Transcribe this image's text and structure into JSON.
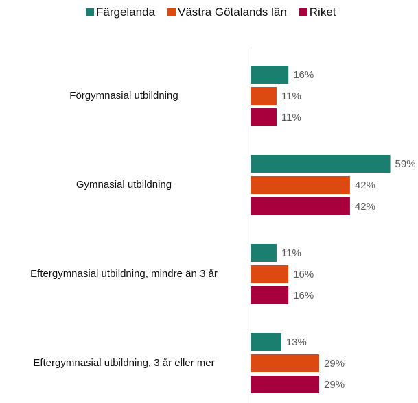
{
  "chart_data": {
    "type": "hbar",
    "categories": [
      "Förgymnasial utbildning",
      "Gymnasial utbildning",
      "Eftergymnasial utbildning, mindre än 3 år",
      "Eftergymnasial utbildning, 3 år eller mer"
    ],
    "series": [
      {
        "name": "Färgelanda",
        "color": "#1a7f6e",
        "values": [
          16,
          59,
          11,
          13
        ],
        "value_labels": [
          "16%",
          "59%",
          "11%",
          "13%"
        ]
      },
      {
        "name": "Västra Götalands län",
        "color": "#dc4a12",
        "values": [
          11,
          42,
          16,
          29
        ],
        "value_labels": [
          "11%",
          "42%",
          "16%",
          "29%"
        ]
      },
      {
        "name": "Riket",
        "color": "#a8003c",
        "values": [
          11,
          42,
          16,
          29
        ],
        "value_labels": [
          "11%",
          "42%",
          "16%",
          "29%"
        ]
      }
    ],
    "legend": "top"
  }
}
